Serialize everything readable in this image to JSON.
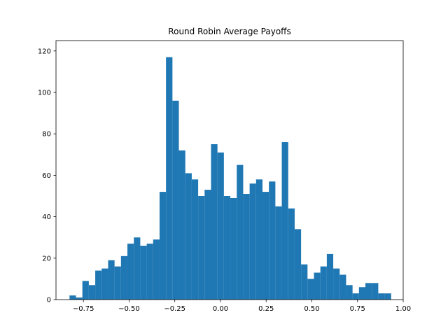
{
  "chart_data": {
    "type": "bar",
    "title": "Round Robin Average Payoffs",
    "xlabel": "",
    "ylabel": "",
    "xlim": [
      -0.9,
      1.0
    ],
    "ylim": [
      0,
      125
    ],
    "grid": false,
    "bar_color": "#1f77b4",
    "bin_width": 0.0352,
    "x_ticks": [
      -0.75,
      -0.5,
      -0.25,
      0.0,
      0.25,
      0.5,
      0.75,
      1.0
    ],
    "x_tick_labels": [
      "−0.75",
      "−0.50",
      "−0.25",
      "0.00",
      "0.25",
      "0.50",
      "0.75",
      "1.00"
    ],
    "y_ticks": [
      0,
      20,
      40,
      60,
      80,
      100,
      120
    ],
    "y_tick_labels": [
      "0",
      "20",
      "40",
      "60",
      "80",
      "100",
      "120"
    ],
    "bin_start": -0.826,
    "values": [
      2,
      1,
      9,
      7,
      14,
      15,
      19,
      16,
      21,
      27,
      30,
      26,
      27,
      29,
      52,
      117,
      96,
      72,
      61,
      58,
      50,
      53,
      75,
      71,
      50,
      49,
      65,
      51,
      56,
      58,
      52,
      57,
      45,
      76,
      44,
      34,
      17,
      10,
      13,
      16,
      22,
      15,
      12,
      7,
      3,
      6,
      8,
      8,
      3,
      3
    ]
  }
}
